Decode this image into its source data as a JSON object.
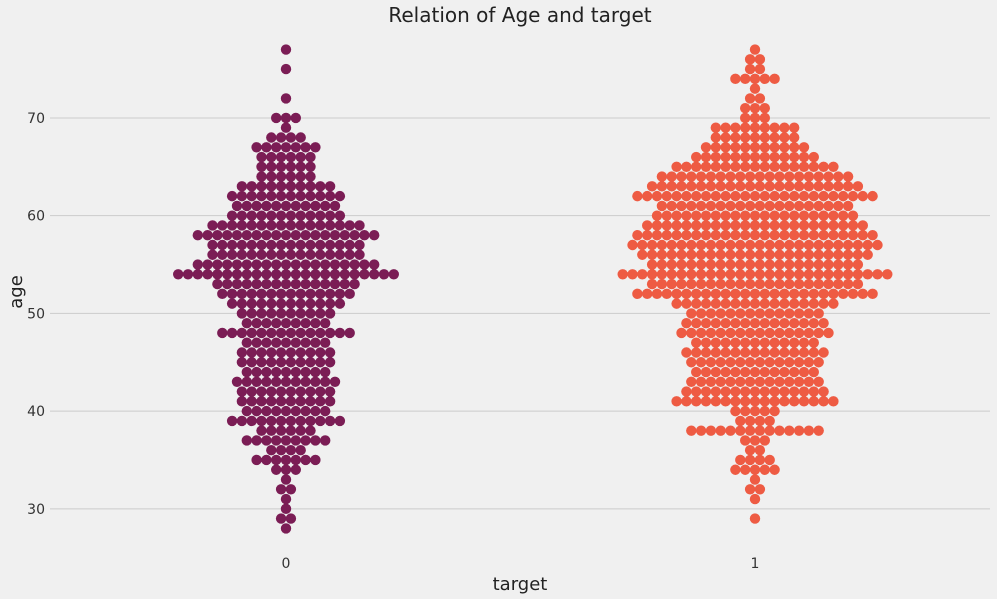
{
  "chart_data": {
    "type": "scatter",
    "title": "Relation of Age and target",
    "xlabel": "target",
    "ylabel": "age",
    "categories": [
      "0",
      "1"
    ],
    "ylim": [
      26.3,
      79.0
    ],
    "yticks": [
      30,
      40,
      50,
      60,
      70
    ],
    "grid": "horizontal",
    "colors": [
      "#7b1d55",
      "#ee5b43"
    ],
    "series": [
      {
        "category": "0",
        "counts_by_age": {
          "28": 1,
          "29": 2,
          "30": 1,
          "31": 1,
          "32": 2,
          "33": 1,
          "34": 3,
          "35": 7,
          "36": 4,
          "37": 9,
          "38": 6,
          "39": 12,
          "40": 9,
          "41": 10,
          "42": 10,
          "43": 11,
          "44": 9,
          "45": 10,
          "46": 10,
          "47": 9,
          "48": 14,
          "49": 9,
          "50": 10,
          "51": 12,
          "52": 14,
          "53": 15,
          "54": 23,
          "55": 19,
          "56": 16,
          "57": 16,
          "58": 19,
          "59": 16,
          "60": 12,
          "61": 11,
          "62": 12,
          "63": 10,
          "64": 6,
          "65": 6,
          "66": 6,
          "67": 7,
          "68": 4,
          "69": 1,
          "70": 3,
          "72": 1,
          "75": 1,
          "77": 1
        }
      },
      {
        "category": "1",
        "counts_by_age": {
          "29": 1,
          "31": 1,
          "32": 2,
          "33": 1,
          "34": 5,
          "35": 4,
          "36": 2,
          "37": 3,
          "38": 14,
          "39": 4,
          "40": 5,
          "41": 17,
          "42": 15,
          "43": 14,
          "44": 13,
          "45": 14,
          "46": 15,
          "47": 13,
          "48": 16,
          "49": 15,
          "50": 14,
          "51": 17,
          "52": 25,
          "53": 22,
          "54": 28,
          "55": 22,
          "56": 24,
          "57": 26,
          "58": 25,
          "59": 23,
          "60": 21,
          "61": 20,
          "62": 25,
          "63": 22,
          "64": 20,
          "65": 17,
          "66": 13,
          "67": 11,
          "68": 9,
          "69": 9,
          "70": 3,
          "71": 3,
          "72": 2,
          "73": 1,
          "74": 5,
          "75": 2,
          "76": 2,
          "77": 1
        }
      }
    ]
  }
}
